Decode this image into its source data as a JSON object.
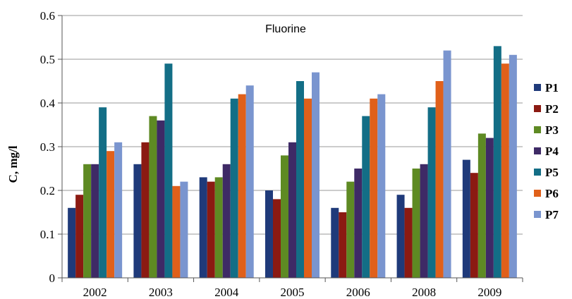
{
  "chart_data": {
    "type": "bar",
    "title": "Fluorine",
    "ylabel": "C, mg/l",
    "xlabel": "",
    "categories": [
      "2002",
      "2003",
      "2004",
      "2005",
      "2006",
      "2008",
      "2009"
    ],
    "ylim": [
      0,
      0.6
    ],
    "yticks": [
      "0",
      "0.1",
      "0.2",
      "0.3",
      "0.4",
      "0.5",
      "0.6"
    ],
    "grid": true,
    "legend_position": "right",
    "series": [
      {
        "name": "P1",
        "color": "#1F3A7A",
        "values": [
          0.16,
          0.26,
          0.23,
          0.2,
          0.16,
          0.19,
          0.27
        ]
      },
      {
        "name": "P2",
        "color": "#8B1A12",
        "values": [
          0.19,
          0.31,
          0.22,
          0.18,
          0.15,
          0.16,
          0.24
        ]
      },
      {
        "name": "P3",
        "color": "#5E8A23",
        "values": [
          0.26,
          0.37,
          0.23,
          0.28,
          0.22,
          0.25,
          0.33
        ]
      },
      {
        "name": "P4",
        "color": "#3E2A66",
        "values": [
          0.26,
          0.36,
          0.26,
          0.31,
          0.25,
          0.26,
          0.32
        ]
      },
      {
        "name": "P5",
        "color": "#136E86",
        "values": [
          0.39,
          0.49,
          0.41,
          0.45,
          0.37,
          0.39,
          0.53
        ]
      },
      {
        "name": "P6",
        "color": "#E0601A",
        "values": [
          0.29,
          0.21,
          0.42,
          0.41,
          0.41,
          0.45,
          0.49
        ]
      },
      {
        "name": "P7",
        "color": "#7A95CF",
        "values": [
          0.31,
          0.22,
          0.44,
          0.47,
          0.42,
          0.52,
          0.51
        ]
      }
    ]
  }
}
